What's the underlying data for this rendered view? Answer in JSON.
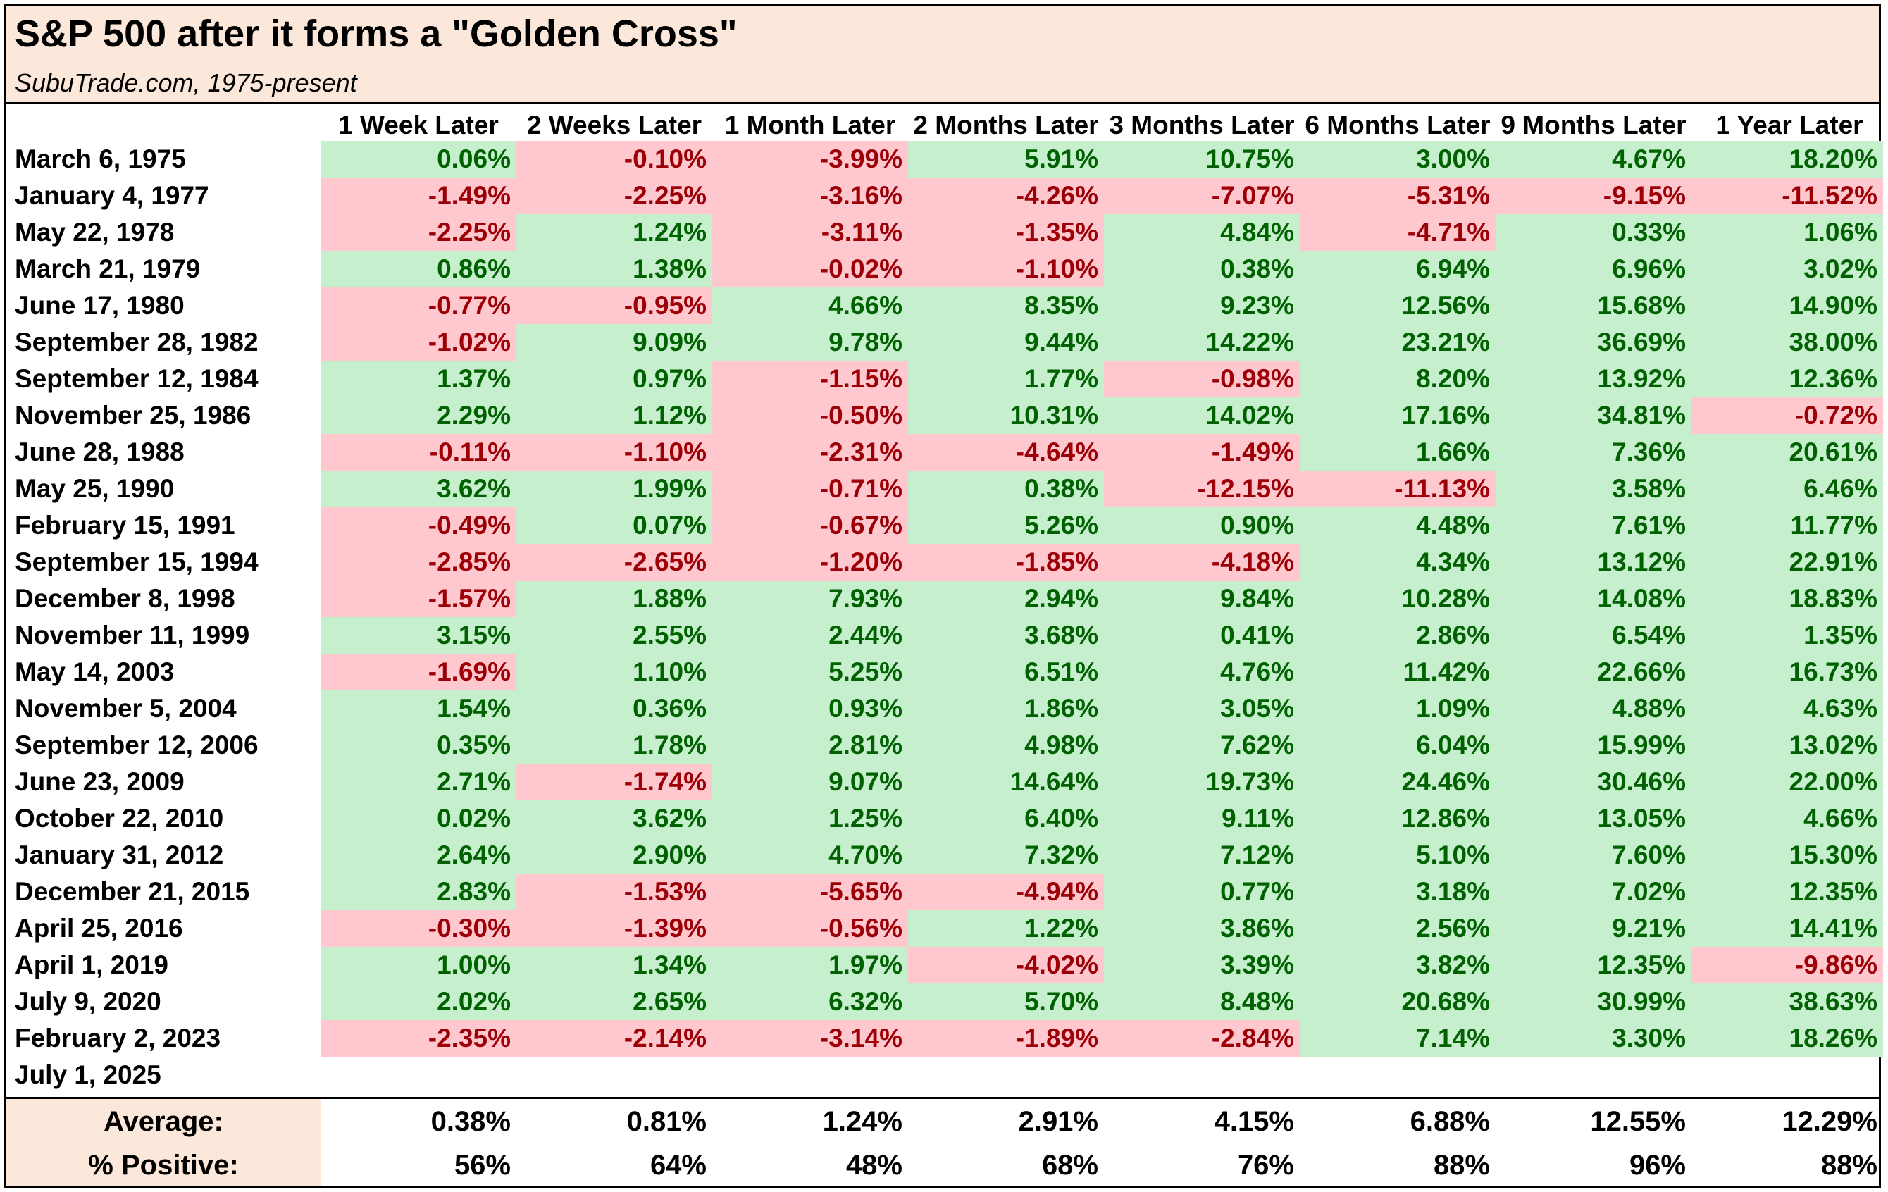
{
  "title": "S&P 500 after it forms a \"Golden Cross\"",
  "subtitle": "SubuTrade.com, 1975-present",
  "chart_data": {
    "type": "table",
    "columns": [
      "1 Week Later",
      "2 Weeks Later",
      "1 Month Later",
      "2 Months Later",
      "3 Months Later",
      "6 Months Later",
      "9 Months Later",
      "1 Year Later"
    ],
    "rows": [
      {
        "date": "March 6, 1975",
        "values": [
          "0.06%",
          "-0.10%",
          "-3.99%",
          "5.91%",
          "10.75%",
          "3.00%",
          "4.67%",
          "18.20%"
        ]
      },
      {
        "date": "January 4, 1977",
        "values": [
          "-1.49%",
          "-2.25%",
          "-3.16%",
          "-4.26%",
          "-7.07%",
          "-5.31%",
          "-9.15%",
          "-11.52%"
        ]
      },
      {
        "date": "May 22, 1978",
        "values": [
          "-2.25%",
          "1.24%",
          "-3.11%",
          "-1.35%",
          "4.84%",
          "-4.71%",
          "0.33%",
          "1.06%"
        ]
      },
      {
        "date": "March 21, 1979",
        "values": [
          "0.86%",
          "1.38%",
          "-0.02%",
          "-1.10%",
          "0.38%",
          "6.94%",
          "6.96%",
          "3.02%"
        ]
      },
      {
        "date": "June 17, 1980",
        "values": [
          "-0.77%",
          "-0.95%",
          "4.66%",
          "8.35%",
          "9.23%",
          "12.56%",
          "15.68%",
          "14.90%"
        ]
      },
      {
        "date": "September 28, 1982",
        "values": [
          "-1.02%",
          "9.09%",
          "9.78%",
          "9.44%",
          "14.22%",
          "23.21%",
          "36.69%",
          "38.00%"
        ]
      },
      {
        "date": "September 12, 1984",
        "values": [
          "1.37%",
          "0.97%",
          "-1.15%",
          "1.77%",
          "-0.98%",
          "8.20%",
          "13.92%",
          "12.36%"
        ]
      },
      {
        "date": "November 25, 1986",
        "values": [
          "2.29%",
          "1.12%",
          "-0.50%",
          "10.31%",
          "14.02%",
          "17.16%",
          "34.81%",
          "-0.72%"
        ]
      },
      {
        "date": "June 28, 1988",
        "values": [
          "-0.11%",
          "-1.10%",
          "-2.31%",
          "-4.64%",
          "-1.49%",
          "1.66%",
          "7.36%",
          "20.61%"
        ]
      },
      {
        "date": "May 25, 1990",
        "values": [
          "3.62%",
          "1.99%",
          "-0.71%",
          "0.38%",
          "-12.15%",
          "-11.13%",
          "3.58%",
          "6.46%"
        ]
      },
      {
        "date": "February 15, 1991",
        "values": [
          "-0.49%",
          "0.07%",
          "-0.67%",
          "5.26%",
          "0.90%",
          "4.48%",
          "7.61%",
          "11.77%"
        ]
      },
      {
        "date": "September 15, 1994",
        "values": [
          "-2.85%",
          "-2.65%",
          "-1.20%",
          "-1.85%",
          "-4.18%",
          "4.34%",
          "13.12%",
          "22.91%"
        ]
      },
      {
        "date": "December 8, 1998",
        "values": [
          "-1.57%",
          "1.88%",
          "7.93%",
          "2.94%",
          "9.84%",
          "10.28%",
          "14.08%",
          "18.83%"
        ]
      },
      {
        "date": "November 11, 1999",
        "values": [
          "3.15%",
          "2.55%",
          "2.44%",
          "3.68%",
          "0.41%",
          "2.86%",
          "6.54%",
          "1.35%"
        ]
      },
      {
        "date": "May 14, 2003",
        "values": [
          "-1.69%",
          "1.10%",
          "5.25%",
          "6.51%",
          "4.76%",
          "11.42%",
          "22.66%",
          "16.73%"
        ]
      },
      {
        "date": "November 5, 2004",
        "values": [
          "1.54%",
          "0.36%",
          "0.93%",
          "1.86%",
          "3.05%",
          "1.09%",
          "4.88%",
          "4.63%"
        ]
      },
      {
        "date": "September 12, 2006",
        "values": [
          "0.35%",
          "1.78%",
          "2.81%",
          "4.98%",
          "7.62%",
          "6.04%",
          "15.99%",
          "13.02%"
        ]
      },
      {
        "date": "June 23, 2009",
        "values": [
          "2.71%",
          "-1.74%",
          "9.07%",
          "14.64%",
          "19.73%",
          "24.46%",
          "30.46%",
          "22.00%"
        ]
      },
      {
        "date": "October 22, 2010",
        "values": [
          "0.02%",
          "3.62%",
          "1.25%",
          "6.40%",
          "9.11%",
          "12.86%",
          "13.05%",
          "4.66%"
        ]
      },
      {
        "date": "January 31, 2012",
        "values": [
          "2.64%",
          "2.90%",
          "4.70%",
          "7.32%",
          "7.12%",
          "5.10%",
          "7.60%",
          "15.30%"
        ]
      },
      {
        "date": "December 21, 2015",
        "values": [
          "2.83%",
          "-1.53%",
          "-5.65%",
          "-4.94%",
          "0.77%",
          "3.18%",
          "7.02%",
          "12.35%"
        ]
      },
      {
        "date": "April 25, 2016",
        "values": [
          "-0.30%",
          "-1.39%",
          "-0.56%",
          "1.22%",
          "3.86%",
          "2.56%",
          "9.21%",
          "14.41%"
        ]
      },
      {
        "date": "April 1, 2019",
        "values": [
          "1.00%",
          "1.34%",
          "1.97%",
          "-4.02%",
          "3.39%",
          "3.82%",
          "12.35%",
          "-9.86%"
        ]
      },
      {
        "date": "July 9, 2020",
        "values": [
          "2.02%",
          "2.65%",
          "6.32%",
          "5.70%",
          "8.48%",
          "20.68%",
          "30.99%",
          "38.63%"
        ]
      },
      {
        "date": "February 2, 2023",
        "values": [
          "-2.35%",
          "-2.14%",
          "-3.14%",
          "-1.89%",
          "-2.84%",
          "7.14%",
          "3.30%",
          "18.26%"
        ]
      },
      {
        "date": "July 1, 2025",
        "values": []
      }
    ],
    "summary": [
      {
        "label": "Average:",
        "values": [
          "0.38%",
          "0.81%",
          "1.24%",
          "2.91%",
          "4.15%",
          "6.88%",
          "12.55%",
          "12.29%"
        ]
      },
      {
        "label": "% Positive:",
        "values": [
          "56%",
          "64%",
          "48%",
          "68%",
          "76%",
          "88%",
          "96%",
          "88%"
        ]
      }
    ],
    "colors": {
      "positive_bg": "#c6efce",
      "positive_text": "#006100",
      "negative_bg": "#ffc7ce",
      "negative_text": "#9c0006",
      "header_bg": "#fce8da"
    }
  }
}
